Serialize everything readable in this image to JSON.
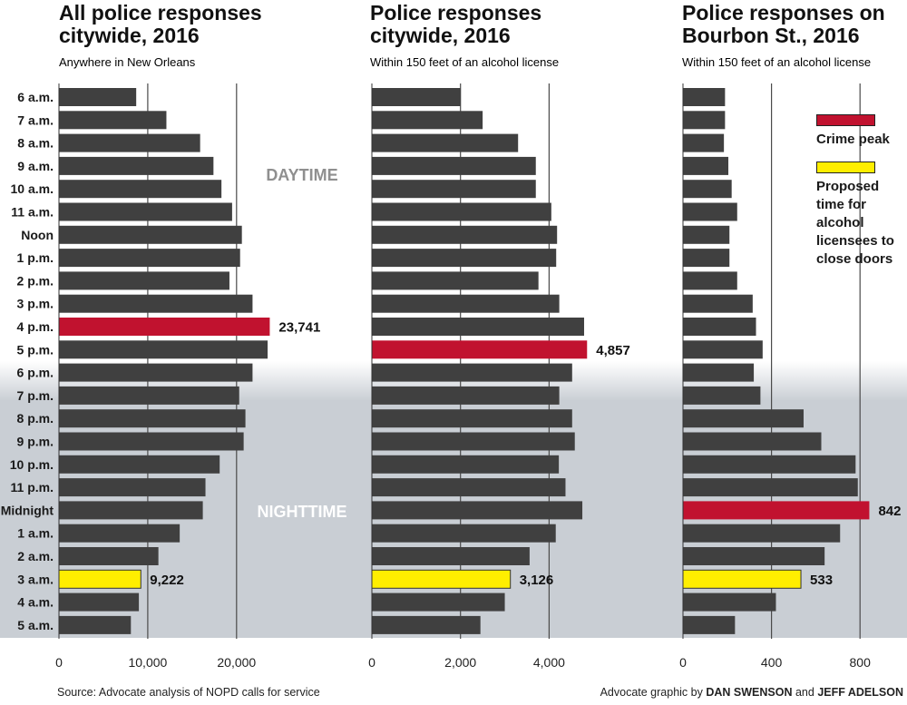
{
  "chart_data": [
    {
      "type": "bar",
      "title": "All police responses citywide, 2016",
      "subtitle": "Anywhere in New Orleans",
      "categories": [
        "6 a.m.",
        "7 a.m.",
        "8 a.m.",
        "9 a.m.",
        "10 a.m.",
        "11 a.m.",
        "Noon",
        "1 p.m.",
        "2 p.m.",
        "3 p.m.",
        "4 p.m.",
        "5 p.m.",
        "6 p.m.",
        "7 p.m.",
        "8 p.m.",
        "9 p.m.",
        "10 p.m.",
        "11 p.m.",
        "Midnight",
        "1 a.m.",
        "2 a.m.",
        "3 a.m.",
        "4 a.m.",
        "5 a.m."
      ],
      "values": [
        8700,
        12100,
        15900,
        17400,
        18300,
        19500,
        20600,
        20400,
        19200,
        21800,
        23741,
        23500,
        21800,
        20300,
        21000,
        20800,
        18100,
        16500,
        16200,
        13600,
        11200,
        9222,
        9000,
        8100
      ],
      "xlim": [
        0,
        25000
      ],
      "xticks": [
        0,
        10000,
        20000
      ],
      "xtick_labels": [
        "0",
        "10,000",
        "20,000"
      ],
      "labeled_values": {
        "4 p.m.": "23,741",
        "3 a.m.": "9,222"
      }
    },
    {
      "type": "bar",
      "title": "Police responses citywide, 2016",
      "subtitle": "Within 150 feet of an alcohol license",
      "categories": [
        "6 a.m.",
        "7 a.m.",
        "8 a.m.",
        "9 a.m.",
        "10 a.m.",
        "11 a.m.",
        "Noon",
        "1 p.m.",
        "2 p.m.",
        "3 p.m.",
        "4 p.m.",
        "5 p.m.",
        "6 p.m.",
        "7 p.m.",
        "8 p.m.",
        "9 p.m.",
        "10 p.m.",
        "11 p.m.",
        "Midnight",
        "1 a.m.",
        "2 a.m.",
        "3 a.m.",
        "4 a.m.",
        "5 a.m."
      ],
      "values": [
        2000,
        2500,
        3300,
        3700,
        3700,
        4050,
        4180,
        4160,
        3760,
        4230,
        4790,
        4857,
        4520,
        4230,
        4520,
        4580,
        4220,
        4370,
        4750,
        4150,
        3560,
        3126,
        3000,
        2450
      ],
      "xlim": [
        0,
        5200
      ],
      "xticks": [
        0,
        2000,
        4000
      ],
      "xtick_labels": [
        "0",
        "2,000",
        "4,000"
      ],
      "labeled_values": {
        "5 p.m.": "4,857",
        "3 a.m.": "3,126"
      }
    },
    {
      "type": "bar",
      "title": "Police responses on Bourbon St., 2016",
      "subtitle": "Within 150 feet of an alcohol license",
      "categories": [
        "6 a.m.",
        "7 a.m.",
        "8 a.m.",
        "9 a.m.",
        "10 a.m.",
        "11 a.m.",
        "Noon",
        "1 p.m.",
        "2 p.m.",
        "3 p.m.",
        "4 p.m.",
        "5 p.m.",
        "6 p.m.",
        "7 p.m.",
        "8 p.m.",
        "9 p.m.",
        "10 p.m.",
        "11 p.m.",
        "Midnight",
        "1 a.m.",
        "2 a.m.",
        "3 a.m.",
        "4 a.m.",
        "5 a.m."
      ],
      "values": [
        190,
        190,
        185,
        205,
        220,
        245,
        210,
        210,
        245,
        315,
        330,
        360,
        320,
        350,
        545,
        625,
        780,
        790,
        842,
        710,
        640,
        533,
        420,
        235
      ],
      "xlim": [
        0,
        900
      ],
      "xticks": [
        0,
        400,
        800
      ],
      "xtick_labels": [
        "0",
        "400",
        "800"
      ],
      "labeled_values": {
        "Midnight": "842",
        "3 a.m.": "533"
      }
    }
  ],
  "bands": {
    "daytime": "DAYTIME",
    "nighttime": "NIGHTTIME"
  },
  "legend": [
    {
      "label": "Crime peak",
      "color": "#c1122f"
    },
    {
      "label": "Proposed time for alcohol licensees to close doors",
      "color": "#ffee00"
    }
  ],
  "colors": {
    "bar": "#404040",
    "peak": "#c1122f",
    "proposed": "#ffee00",
    "night_band": "#c9ced4",
    "gridline": "#4a4a4a"
  },
  "footer": {
    "source": "Source: Advocate analysis of NOPD calls for service",
    "credit_prefix": "Advocate graphic by ",
    "credit_name_1": "DAN SWENSON",
    "credit_joiner": " and ",
    "credit_name_2": "JEFF ADELSON"
  }
}
